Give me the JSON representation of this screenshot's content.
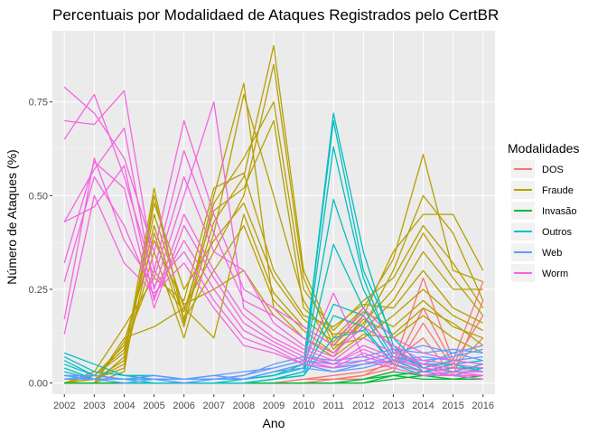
{
  "chart_data": {
    "type": "line",
    "title": "Percentuais por Modalidaed de Ataques Registrados pelo CertBR",
    "xlabel": "Ano",
    "ylabel": "Número de Ataques (%)",
    "x": [
      2002,
      2003,
      2004,
      2005,
      2006,
      2007,
      2008,
      2009,
      2010,
      2011,
      2012,
      2013,
      2014,
      2015,
      2016
    ],
    "x_ticks": [
      "2002",
      "2003",
      "2004",
      "2005",
      "2006",
      "2007",
      "2008",
      "2009",
      "2010",
      "2011",
      "2012",
      "2013",
      "2014",
      "2015",
      "2016"
    ],
    "y_ticks": [
      {
        "value": 0.0,
        "label": "0.00"
      },
      {
        "value": 0.25,
        "label": "0.25"
      },
      {
        "value": 0.5,
        "label": "0.50"
      },
      {
        "value": 0.75,
        "label": "0.75"
      }
    ],
    "xlim": [
      2001.6,
      2016.4
    ],
    "ylim": [
      -0.03,
      0.94
    ],
    "grid": true,
    "legend": {
      "title": "Modalidades",
      "position": "right",
      "entries": [
        {
          "label": "DOS",
          "color": "#f8766d"
        },
        {
          "label": "Fraude",
          "color": "#b79f00"
        },
        {
          "label": "Invasão",
          "color": "#00ba38"
        },
        {
          "label": "Outros",
          "color": "#00bfc4"
        },
        {
          "label": "Web",
          "color": "#619cff"
        },
        {
          "label": "Worm",
          "color": "#f564e3"
        }
      ]
    },
    "series": [
      {
        "name": "DOS",
        "lines": [
          [
            0,
            0,
            0,
            0,
            0,
            0,
            0,
            0,
            0.01,
            0.02,
            0.03,
            0.05,
            0.28,
            0.06,
            0.27
          ],
          [
            0,
            0,
            0,
            0,
            0,
            0,
            0,
            0,
            0.01,
            0.01,
            0.02,
            0.04,
            0.2,
            0.05,
            0.18
          ],
          [
            0,
            0,
            0,
            0,
            0,
            0,
            0,
            0,
            0,
            0.01,
            0.01,
            0.03,
            0.16,
            0.04,
            0.12
          ],
          [
            0,
            0,
            0,
            0,
            0,
            0,
            0,
            0,
            0,
            0.01,
            0.02,
            0.06,
            0.12,
            0.02,
            0.22
          ]
        ]
      },
      {
        "name": "Fraude",
        "lines": [
          [
            0,
            0,
            0.03,
            0.5,
            0.17,
            0.5,
            0.8,
            0.2,
            0.12,
            0.08,
            0.15,
            0.3,
            0.5,
            0.4,
            0.22
          ],
          [
            0.01,
            0.01,
            0.06,
            0.52,
            0.16,
            0.43,
            0.55,
            0.9,
            0.3,
            0.12,
            0.2,
            0.33,
            0.61,
            0.3,
            0.27
          ],
          [
            0,
            0.02,
            0.08,
            0.45,
            0.2,
            0.35,
            0.5,
            0.85,
            0.28,
            0.1,
            0.18,
            0.35,
            0.45,
            0.45,
            0.3
          ],
          [
            0,
            0.01,
            0.05,
            0.4,
            0.15,
            0.48,
            0.6,
            0.75,
            0.25,
            0.14,
            0.22,
            0.28,
            0.42,
            0.32,
            0.2
          ],
          [
            0,
            0,
            0.07,
            0.35,
            0.12,
            0.4,
            0.77,
            0.5,
            0.22,
            0.09,
            0.16,
            0.25,
            0.4,
            0.28,
            0.18
          ],
          [
            0.01,
            0.02,
            0.1,
            0.3,
            0.19,
            0.46,
            0.52,
            0.7,
            0.2,
            0.13,
            0.14,
            0.22,
            0.35,
            0.25,
            0.25
          ],
          [
            0,
            0.03,
            0.15,
            0.28,
            0.22,
            0.52,
            0.56,
            0.3,
            0.18,
            0.15,
            0.21,
            0.2,
            0.3,
            0.2,
            0.16
          ],
          [
            0,
            0,
            0.12,
            0.15,
            0.2,
            0.12,
            0.45,
            0.24,
            0.15,
            0.1,
            0.12,
            0.18,
            0.25,
            0.18,
            0.14
          ],
          [
            0,
            0.01,
            0.04,
            0.48,
            0.25,
            0.38,
            0.48,
            0.28,
            0.17,
            0.11,
            0.19,
            0.15,
            0.22,
            0.15,
            0.12
          ],
          [
            0,
            0.02,
            0.09,
            0.42,
            0.17,
            0.3,
            0.42,
            0.22,
            0.14,
            0.08,
            0.17,
            0.13,
            0.2,
            0.16,
            0.1
          ],
          [
            0,
            0,
            0.11,
            0.38,
            0.21,
            0.25,
            0.3,
            0.18,
            0.12,
            0.07,
            0.13,
            0.12,
            0.18,
            0.12,
            0.08
          ]
        ]
      },
      {
        "name": "Invasão",
        "lines": [
          [
            0,
            0,
            0,
            0,
            0,
            0,
            0,
            0,
            0,
            0,
            0.01,
            0.02,
            0.03,
            0.02,
            0.02
          ],
          [
            0,
            0,
            0,
            0,
            0,
            0,
            0,
            0,
            0,
            0,
            0,
            0.01,
            0.02,
            0.01,
            0.01
          ],
          [
            0,
            0,
            0,
            0,
            0,
            0,
            0,
            0,
            0,
            0,
            0.01,
            0.03,
            0.02,
            0.02,
            0.01
          ],
          [
            0,
            0,
            0,
            0,
            0,
            0,
            0,
            0,
            0,
            0,
            0,
            0.02,
            0.01,
            0.01,
            0.02
          ]
        ]
      },
      {
        "name": "Outros",
        "lines": [
          [
            0.08,
            0.05,
            0.02,
            0.02,
            0.01,
            0.01,
            0.01,
            0.02,
            0.05,
            0.72,
            0.35,
            0.1,
            0.03,
            0.05,
            0.06
          ],
          [
            0.07,
            0.03,
            0.02,
            0.01,
            0.01,
            0.01,
            0.01,
            0.03,
            0.05,
            0.7,
            0.3,
            0.12,
            0.04,
            0.06,
            0.05
          ],
          [
            0.06,
            0.02,
            0.01,
            0.01,
            0,
            0.01,
            0.01,
            0.02,
            0.04,
            0.63,
            0.28,
            0.08,
            0.05,
            0.04,
            0.04
          ],
          [
            0.05,
            0.02,
            0.01,
            0.01,
            0,
            0,
            0.01,
            0.02,
            0.04,
            0.49,
            0.25,
            0.09,
            0.04,
            0.03,
            0.05
          ],
          [
            0.04,
            0.01,
            0.01,
            0,
            0,
            0,
            0,
            0.01,
            0.03,
            0.37,
            0.2,
            0.07,
            0.05,
            0.05,
            0.03
          ],
          [
            0.03,
            0.01,
            0,
            0,
            0,
            0,
            0,
            0.01,
            0.03,
            0.21,
            0.18,
            0.06,
            0.03,
            0.04,
            0.04
          ],
          [
            0.02,
            0.01,
            0,
            0,
            0,
            0,
            0,
            0.01,
            0.02,
            0.18,
            0.15,
            0.05,
            0.02,
            0.03,
            0.03
          ],
          [
            0.01,
            0.01,
            0,
            0,
            0,
            0,
            0,
            0.01,
            0.02,
            0.12,
            0.14,
            0.05,
            0.03,
            0.02,
            0.04
          ]
        ]
      },
      {
        "name": "Web",
        "lines": [
          [
            0.02,
            0.01,
            0.01,
            0.02,
            0.01,
            0.02,
            0.03,
            0.04,
            0.06,
            0.05,
            0.06,
            0.08,
            0.1,
            0.08,
            0.1
          ],
          [
            0.02,
            0.02,
            0.01,
            0.02,
            0.01,
            0.01,
            0.02,
            0.05,
            0.07,
            0.06,
            0.07,
            0.09,
            0.08,
            0.09,
            0.08
          ],
          [
            0.01,
            0.02,
            0.01,
            0.01,
            0.01,
            0.01,
            0.02,
            0.04,
            0.06,
            0.04,
            0.05,
            0.07,
            0.06,
            0.07,
            0.09
          ],
          [
            0.01,
            0.01,
            0.01,
            0.01,
            0.01,
            0.02,
            0.01,
            0.03,
            0.05,
            0.03,
            0.04,
            0.06,
            0.07,
            0.06,
            0.07
          ],
          [
            0.01,
            0.01,
            0,
            0.01,
            0,
            0.01,
            0.01,
            0.03,
            0.04,
            0.03,
            0.05,
            0.06,
            0.05,
            0.08,
            0.06
          ]
        ]
      },
      {
        "name": "Worm",
        "lines": [
          [
            0.79,
            0.72,
            0.6,
            0.35,
            0.7,
            0.45,
            0.25,
            0.2,
            0.15,
            0.1,
            0.2,
            0.12,
            0.08,
            0.06,
            0.05
          ],
          [
            0.7,
            0.69,
            0.78,
            0.3,
            0.62,
            0.4,
            0.22,
            0.18,
            0.12,
            0.08,
            0.15,
            0.1,
            0.06,
            0.05,
            0.04
          ],
          [
            0.65,
            0.77,
            0.55,
            0.28,
            0.55,
            0.35,
            0.3,
            0.16,
            0.1,
            0.07,
            0.18,
            0.09,
            0.05,
            0.04,
            0.03
          ],
          [
            0.43,
            0.57,
            0.68,
            0.25,
            0.5,
            0.75,
            0.2,
            0.14,
            0.09,
            0.06,
            0.12,
            0.08,
            0.05,
            0.03,
            0.03
          ],
          [
            0.43,
            0.47,
            0.58,
            0.22,
            0.45,
            0.3,
            0.18,
            0.12,
            0.08,
            0.05,
            0.1,
            0.07,
            0.04,
            0.03,
            0.02
          ],
          [
            0.32,
            0.59,
            0.52,
            0.2,
            0.42,
            0.28,
            0.16,
            0.11,
            0.07,
            0.05,
            0.09,
            0.06,
            0.04,
            0.02,
            0.02
          ],
          [
            0.27,
            0.55,
            0.42,
            0.23,
            0.38,
            0.25,
            0.14,
            0.1,
            0.06,
            0.04,
            0.08,
            0.05,
            0.03,
            0.02,
            0.02
          ],
          [
            0.17,
            0.6,
            0.38,
            0.26,
            0.35,
            0.22,
            0.12,
            0.09,
            0.05,
            0.24,
            0.07,
            0.05,
            0.03,
            0.02,
            0.01
          ],
          [
            0.13,
            0.5,
            0.32,
            0.24,
            0.32,
            0.2,
            0.1,
            0.08,
            0.05,
            0.04,
            0.06,
            0.04,
            0.02,
            0.02,
            0.01
          ]
        ]
      }
    ]
  }
}
